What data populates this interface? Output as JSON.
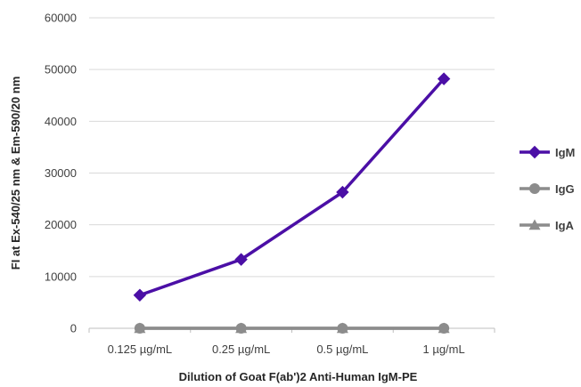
{
  "chart_data": {
    "type": "line",
    "categories": [
      "0.125 µg/mL",
      "0.25 µg/mL",
      "0.5 µg/mL",
      "1 µg/mL"
    ],
    "series": [
      {
        "name": "IgM",
        "values": [
          6400,
          13300,
          26300,
          48200
        ],
        "color": "#4b0fa6",
        "marker": "diamond"
      },
      {
        "name": "IgG",
        "values": [
          0,
          0,
          0,
          0
        ],
        "color": "#8c8c8c",
        "marker": "circle"
      },
      {
        "name": "IgA",
        "values": [
          0,
          0,
          0,
          0
        ],
        "color": "#8c8c8c",
        "marker": "triangle"
      }
    ],
    "xlabel": "Dilution of Goat F(ab')2 Anti-Human IgM-PE",
    "ylabel": "FI at Ex-540/25 nm & Em-590/20 nm",
    "ylim": [
      0,
      60000
    ],
    "yticks": [
      0,
      10000,
      20000,
      30000,
      40000,
      50000,
      60000
    ],
    "ytick_labels": [
      "0",
      "10000",
      "20000",
      "30000",
      "40000",
      "50000",
      "60000"
    ],
    "grid": true,
    "legend_position": "right"
  }
}
